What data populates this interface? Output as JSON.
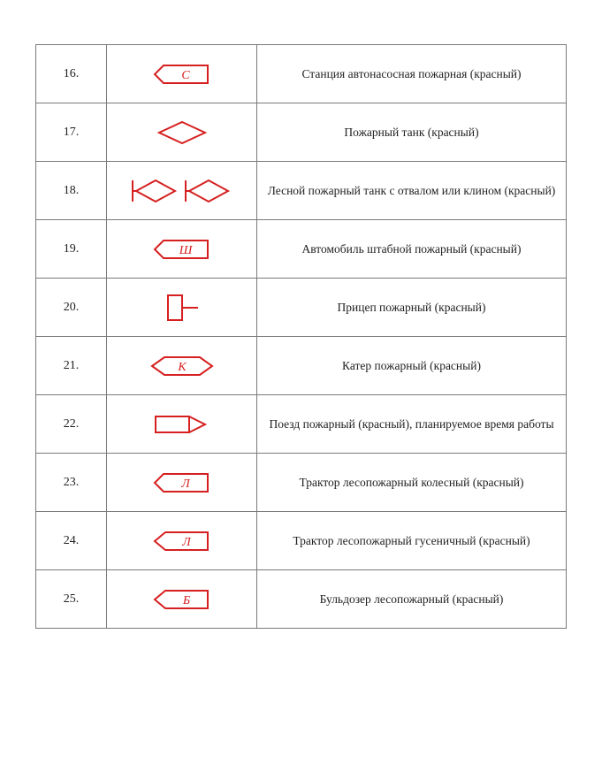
{
  "symbol_color": "#d62020",
  "text_color": "#222222",
  "border_color": "#7a7a7a",
  "background_color": "#ffffff",
  "stroke_width": 2,
  "font_family": "Times New Roman",
  "rows": [
    {
      "num": "16.",
      "symbol_type": "pentagon-letter",
      "letter": "С",
      "desc": "Станция автонасосная пожарная (красный)"
    },
    {
      "num": "17.",
      "symbol_type": "diamond",
      "desc": "Пожарный танк (красный)"
    },
    {
      "num": "18.",
      "symbol_type": "diamond-blade-pair",
      "desc": "Лесной пожарный танк с отвалом или клином (красный)"
    },
    {
      "num": "19.",
      "symbol_type": "pentagon-letter",
      "letter": "Ш",
      "desc": "Автомобиль штабной пожарный (красный)"
    },
    {
      "num": "20.",
      "symbol_type": "trailer",
      "desc": "Прицеп пожарный (красный)"
    },
    {
      "num": "21.",
      "symbol_type": "hex-letter",
      "letter": "К",
      "desc": "Катер пожарный (красный)"
    },
    {
      "num": "22.",
      "symbol_type": "train",
      "desc": "Поезд пожарный (красный), планируемое время работы"
    },
    {
      "num": "23.",
      "symbol_type": "pentagon-letter",
      "letter": "Л",
      "desc": "Трактор лесопожарный колесный (красный)"
    },
    {
      "num": "24.",
      "symbol_type": "pentagon-point-letter",
      "letter": "Л",
      "desc": "Трактор лесопожарный  гусеничный (красный)"
    },
    {
      "num": "25.",
      "symbol_type": "pentagon-point-letter",
      "letter": "Б",
      "desc": "Бульдозер лесопожарный (красный)"
    }
  ]
}
